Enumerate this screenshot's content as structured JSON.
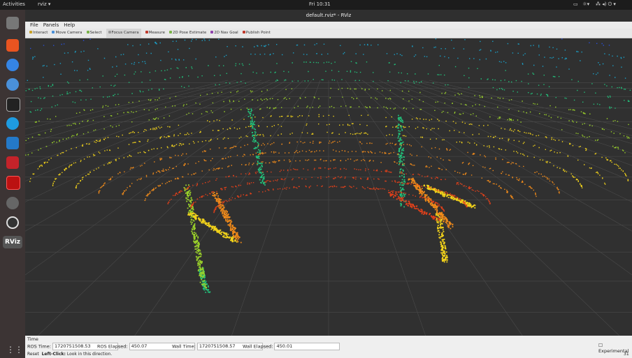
{
  "topbar": {
    "activities": "Activities",
    "app": "rviz ▾",
    "clock": "Fri 10:31"
  },
  "dock": {
    "rviz_label": "RViz"
  },
  "window": {
    "title": "default.rviz* - RViz",
    "menu": [
      "File",
      "Panels",
      "Help"
    ],
    "toolbar": [
      "Interact",
      "Move Camera",
      "Select",
      "Focus Camera",
      "Measure",
      "2D Pose Estimate",
      "2D Nav Goal",
      "Publish Point"
    ],
    "time_panel": {
      "title": "Time",
      "fields": [
        {
          "label": "ROS Time:",
          "value": "1720751508.53"
        },
        {
          "label": "ROS Elapsed:",
          "value": "450.07"
        },
        {
          "label": "Wall Time:",
          "value": "1720751508.57"
        },
        {
          "label": "Wall Elapsed:",
          "value": "450.01"
        }
      ],
      "experimental": "Experimental"
    },
    "status": {
      "reset": "Reset",
      "key": "Left-Click:",
      "hint": "Look in this direction.",
      "fps": "31"
    }
  }
}
